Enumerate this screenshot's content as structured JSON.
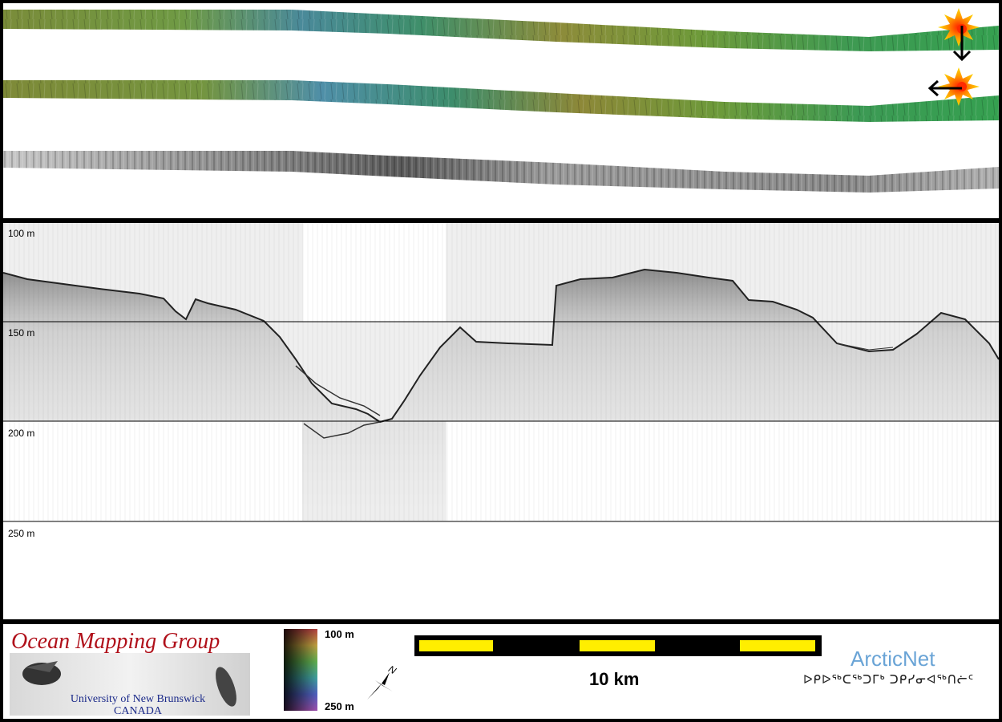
{
  "depth_axis": {
    "ticks": [
      "100 m",
      "150 m",
      "200 m",
      "250 m"
    ]
  },
  "legend": {
    "colorbar_top": "100 m",
    "colorbar_bottom": "250 m",
    "scalebar_label": "10 km",
    "north_label": "N"
  },
  "logos": {
    "omg_title": "Ocean Mapping Group",
    "omg_line1": "University of New Brunswick",
    "omg_line2": "CANADA",
    "arcticnet_title": "ArcticNet",
    "arcticnet_sub": "ᐅᑭᐅᖅᑕᖅᑐᒥᒃ ᑐᑭᓯᓂᐊᖅᑎᓖᑦ"
  },
  "colors": {
    "scalebar_fill": "#ffee00",
    "scalebar_body": "#000000",
    "omg_title": "#b0101a",
    "omg_sub": "#1b2a8a",
    "arcticnet": "#6aa4d6"
  }
}
